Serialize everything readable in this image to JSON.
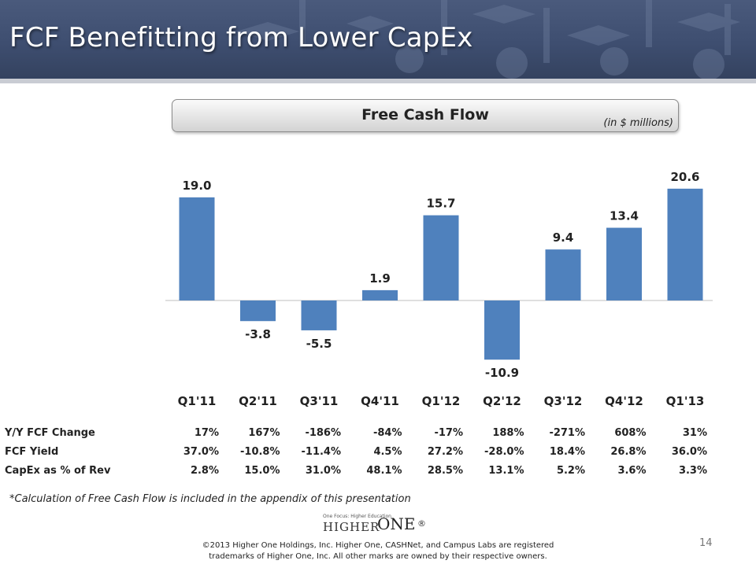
{
  "header": {
    "title": "FCF Benefitting from Lower CapEx"
  },
  "chart_box": {
    "title": "Free Cash Flow",
    "unit": "(in $ millions)"
  },
  "chart_data": {
    "type": "bar",
    "title": "Free Cash Flow",
    "subtitle": "(in $ millions)",
    "categories": [
      "Q1'11",
      "Q2'11",
      "Q3'11",
      "Q4'11",
      "Q1'12",
      "Q2'12",
      "Q3'12",
      "Q4'12",
      "Q1'13"
    ],
    "values": [
      19.0,
      -3.8,
      -5.5,
      1.9,
      15.7,
      -10.9,
      9.4,
      13.4,
      20.6
    ],
    "value_labels": [
      "19.0",
      "-3.8",
      "-5.5",
      "1.9",
      "15.7",
      "-10.9",
      "9.4",
      "13.4",
      "20.6"
    ],
    "ylim": [
      -11,
      21
    ],
    "color": "#4f81bd",
    "grid": false,
    "xlabel": "",
    "ylabel": ""
  },
  "table": {
    "rows": [
      {
        "label": "Y/Y FCF Change",
        "values": [
          "17%",
          "167%",
          "-186%",
          "-84%",
          "-17%",
          "188%",
          "-271%",
          "608%",
          "31%"
        ]
      },
      {
        "label": "FCF Yield",
        "values": [
          "37.0%",
          "-10.8%",
          "-11.4%",
          "4.5%",
          "27.2%",
          "-28.0%",
          "18.4%",
          "26.8%",
          "36.0%"
        ]
      },
      {
        "label": "CapEx as % of Rev",
        "values": [
          "2.8%",
          "15.0%",
          "31.0%",
          "48.1%",
          "28.5%",
          "13.1%",
          "5.2%",
          "3.6%",
          "3.3%"
        ]
      }
    ]
  },
  "footnote": "*Calculation of Free Cash Flow is included in the appendix of this presentation",
  "logo": {
    "tagline": "One Focus: Higher Education",
    "word1": "HIGHER",
    "word2": "ONE",
    "mark": "®"
  },
  "copyright": {
    "line1": "©2013 Higher One Holdings, Inc.  Higher One, CASHNet, and Campus Labs are registered",
    "line2": "trademarks of Higher One, Inc.  All other marks are owned by their respective owners."
  },
  "page_number": "14"
}
